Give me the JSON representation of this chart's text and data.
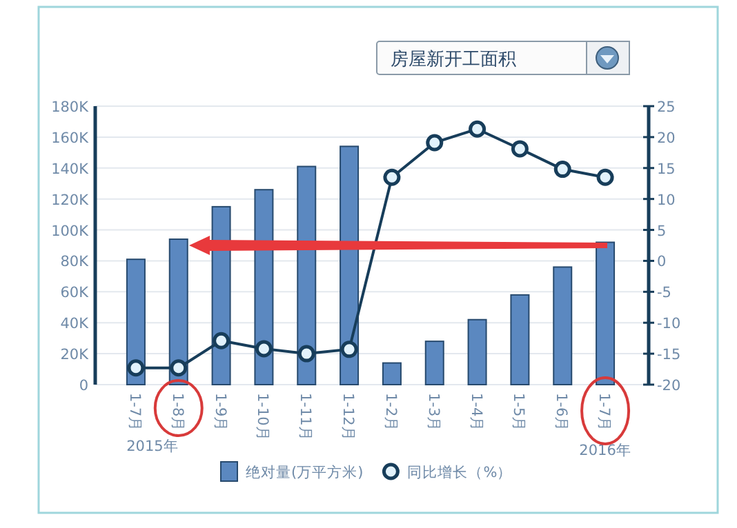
{
  "chart_data": {
    "type": "bar",
    "title": "房屋新开工面积",
    "categories": [
      "1-7月",
      "1-8月",
      "1-9月",
      "1-10月",
      "1-11月",
      "1-12月",
      "1-2月",
      "1-3月",
      "1-4月",
      "1-5月",
      "1-6月",
      "1-7月"
    ],
    "series": [
      {
        "name": "绝对量(万平方米)",
        "color": "#5b88c0",
        "values": [
          81000,
          94000,
          115000,
          126000,
          141000,
          154000,
          14000,
          28000,
          42000,
          58000,
          76000,
          92000
        ]
      },
      {
        "name": "同比增长（%）",
        "type": "line",
        "axis": "y2",
        "color": "#173d5a",
        "values": [
          -17.3,
          -17.3,
          -12.9,
          -14.2,
          -15.0,
          -14.3,
          13.5,
          19.1,
          21.3,
          18.1,
          14.8,
          13.5
        ]
      }
    ],
    "ylim": [
      0,
      180000
    ],
    "yticks": [
      {
        "value": 0,
        "label": "0"
      },
      {
        "value": 20000,
        "label": "20K"
      },
      {
        "value": 40000,
        "label": "40K"
      },
      {
        "value": 60000,
        "label": "60K"
      },
      {
        "value": 80000,
        "label": "80K"
      },
      {
        "value": 100000,
        "label": "100K"
      },
      {
        "value": 120000,
        "label": "120K"
      },
      {
        "value": 140000,
        "label": "140K"
      },
      {
        "value": 160000,
        "label": "160K"
      },
      {
        "value": 180000,
        "label": "180K"
      }
    ],
    "y2lim": [
      -20,
      25
    ],
    "y2ticks": [
      -20,
      -15,
      -10,
      -5,
      0,
      5,
      10,
      15,
      20,
      25
    ],
    "grid": "y",
    "legend": "bottom",
    "marker": "circle",
    "annotations": [
      "2015年",
      "2016年"
    ]
  }
}
